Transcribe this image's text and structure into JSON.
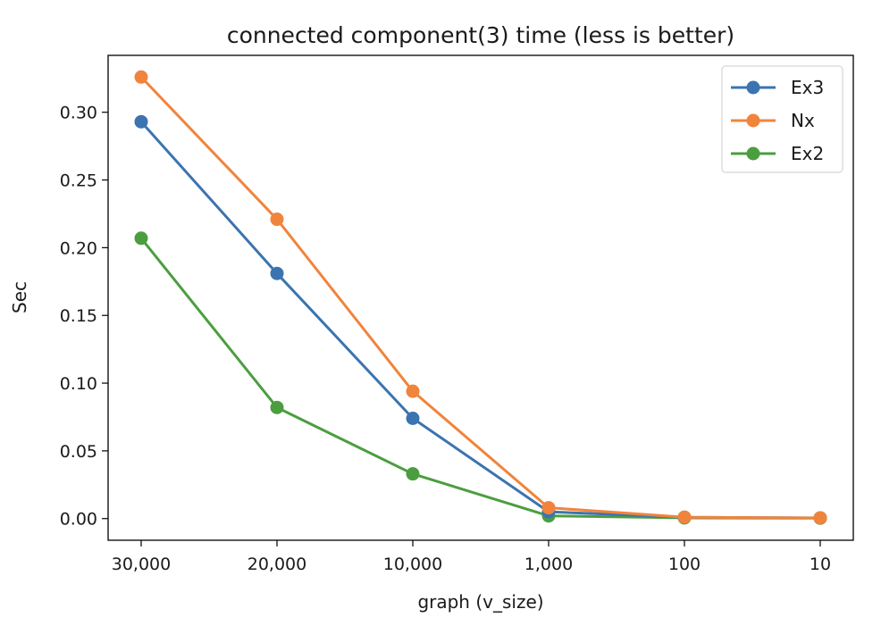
{
  "chart_data": {
    "type": "line",
    "title": "connected component(3) time (less is better)",
    "xlabel": "graph (v_size)",
    "ylabel": "Sec",
    "categories": [
      "30,000",
      "20,000",
      "10,000",
      "1,000",
      "100",
      "10"
    ],
    "ylim": [
      -0.016,
      0.342
    ],
    "yticks": [
      0.0,
      0.05,
      0.1,
      0.15,
      0.2,
      0.25,
      0.3
    ],
    "ytick_labels": [
      "0.00",
      "0.05",
      "0.10",
      "0.15",
      "0.20",
      "0.25",
      "0.30"
    ],
    "grid": false,
    "legend_position": "top-right",
    "series": [
      {
        "name": "Ex3",
        "color": "#3b74b0",
        "values": [
          0.293,
          0.181,
          0.074,
          0.005,
          0.001,
          0.0005
        ]
      },
      {
        "name": "Nx",
        "color": "#f0843c",
        "values": [
          0.326,
          0.221,
          0.094,
          0.008,
          0.001,
          0.0005
        ]
      },
      {
        "name": "Ex2",
        "color": "#4b9e3f",
        "values": [
          0.207,
          0.082,
          0.033,
          0.002,
          0.0005,
          0.0003
        ]
      }
    ]
  }
}
